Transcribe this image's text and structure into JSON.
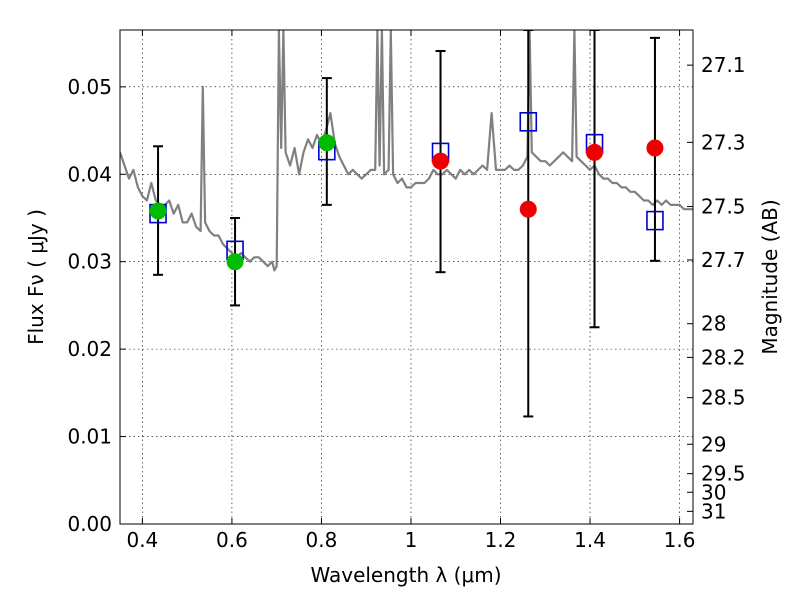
{
  "chart_data": {
    "type": "scatter",
    "title": "",
    "xlabel": "Wavelength  λ (μm)",
    "ylabel": "Flux  Fν  ( μJy )",
    "ylabel_right": "Magnitude (AB)",
    "xlim": [
      0.35,
      1.63
    ],
    "ylim": [
      0.0,
      0.0565
    ],
    "grid": true,
    "x_ticks": [
      0.4,
      0.6,
      0.8,
      1.0,
      1.2,
      1.4,
      1.6
    ],
    "x_tick_labels": [
      "0.4",
      "0.6",
      "0.8",
      "1",
      "1.2",
      "1.4",
      "1.6"
    ],
    "y_ticks": [
      0.0,
      0.01,
      0.02,
      0.03,
      0.04,
      0.05
    ],
    "y_tick_labels": [
      "0.00",
      "0.01",
      "0.02",
      "0.03",
      "0.04",
      "0.05"
    ],
    "right_axis": {
      "label": "Magnitude (AB)",
      "magnitudes": [
        27.1,
        27.3,
        27.5,
        27.7,
        28,
        28.2,
        28.5,
        29,
        29.5,
        30,
        31
      ],
      "tick_labels": [
        "27.1",
        "27.3",
        "27.5",
        "27.7",
        "28",
        "28.2",
        "28.5",
        "29",
        "29.5",
        "30",
        "31"
      ]
    },
    "series": [
      {
        "kind": "line",
        "color": "#808080",
        "x": [
          0.35,
          0.36,
          0.37,
          0.38,
          0.39,
          0.4,
          0.41,
          0.42,
          0.43,
          0.44,
          0.45,
          0.46,
          0.47,
          0.48,
          0.49,
          0.5,
          0.51,
          0.52,
          0.53,
          0.535,
          0.54,
          0.55,
          0.56,
          0.57,
          0.58,
          0.59,
          0.6,
          0.61,
          0.62,
          0.63,
          0.64,
          0.65,
          0.66,
          0.67,
          0.68,
          0.69,
          0.695,
          0.7,
          0.705,
          0.71,
          0.715,
          0.72,
          0.73,
          0.74,
          0.75,
          0.76,
          0.77,
          0.78,
          0.79,
          0.8,
          0.81,
          0.82,
          0.83,
          0.84,
          0.85,
          0.86,
          0.87,
          0.88,
          0.89,
          0.9,
          0.91,
          0.92,
          0.925,
          0.93,
          0.935,
          0.94,
          0.95,
          0.955,
          0.96,
          0.97,
          0.98,
          0.99,
          1.0,
          1.01,
          1.02,
          1.03,
          1.04,
          1.05,
          1.06,
          1.07,
          1.08,
          1.09,
          1.1,
          1.11,
          1.12,
          1.13,
          1.14,
          1.15,
          1.16,
          1.17,
          1.18,
          1.19,
          1.2,
          1.21,
          1.22,
          1.23,
          1.24,
          1.25,
          1.26,
          1.265,
          1.27,
          1.28,
          1.29,
          1.3,
          1.31,
          1.32,
          1.33,
          1.34,
          1.35,
          1.36,
          1.365,
          1.37,
          1.38,
          1.39,
          1.4,
          1.41,
          1.42,
          1.43,
          1.44,
          1.45,
          1.46,
          1.47,
          1.48,
          1.49,
          1.5,
          1.51,
          1.52,
          1.53,
          1.54,
          1.55,
          1.56,
          1.57,
          1.58,
          1.59,
          1.6,
          1.61,
          1.62,
          1.63
        ],
        "y": [
          0.0425,
          0.041,
          0.0395,
          0.0405,
          0.0385,
          0.0375,
          0.037,
          0.039,
          0.037,
          0.0365,
          0.0365,
          0.037,
          0.0355,
          0.0365,
          0.0345,
          0.0345,
          0.0355,
          0.034,
          0.0335,
          0.05,
          0.0345,
          0.0335,
          0.033,
          0.033,
          0.032,
          0.0315,
          0.031,
          0.0305,
          0.031,
          0.0305,
          0.03,
          0.0305,
          0.0305,
          0.03,
          0.0295,
          0.03,
          0.029,
          0.0295,
          0.0565,
          0.043,
          0.0565,
          0.0425,
          0.041,
          0.043,
          0.04,
          0.0425,
          0.044,
          0.043,
          0.0445,
          0.0435,
          0.045,
          0.047,
          0.0435,
          0.042,
          0.041,
          0.04,
          0.0405,
          0.04,
          0.0395,
          0.04,
          0.0405,
          0.0405,
          0.0565,
          0.041,
          0.0565,
          0.04,
          0.0405,
          0.0565,
          0.04,
          0.039,
          0.0395,
          0.0385,
          0.0385,
          0.039,
          0.039,
          0.039,
          0.0395,
          0.0405,
          0.04,
          0.04,
          0.0405,
          0.04,
          0.0395,
          0.0405,
          0.04,
          0.0405,
          0.04,
          0.0405,
          0.041,
          0.0405,
          0.047,
          0.0405,
          0.0405,
          0.0405,
          0.041,
          0.0405,
          0.0405,
          0.041,
          0.042,
          0.0565,
          0.0425,
          0.042,
          0.0415,
          0.0415,
          0.041,
          0.0415,
          0.042,
          0.0425,
          0.042,
          0.0415,
          0.0565,
          0.042,
          0.0415,
          0.041,
          0.0405,
          0.041,
          0.04,
          0.0395,
          0.0395,
          0.039,
          0.039,
          0.0385,
          0.0385,
          0.038,
          0.038,
          0.0375,
          0.037,
          0.037,
          0.0365,
          0.037,
          0.0365,
          0.037,
          0.0365,
          0.0365,
          0.0365,
          0.036,
          0.036,
          0.036
        ]
      },
      {
        "kind": "errorbar",
        "color": "#000000",
        "x": [
          0.435,
          0.607,
          0.812,
          1.066,
          1.262,
          1.41,
          1.545
        ],
        "y": [
          0.0358,
          0.03,
          0.0436,
          0.0415,
          0.036,
          0.0425,
          0.043
        ],
        "yerr_low": [
          0.0285,
          0.025,
          0.0365,
          0.0288,
          0.0123,
          0.0225,
          0.0301
        ],
        "yerr_high": [
          0.0432,
          0.035,
          0.051,
          0.0541,
          0.0565,
          0.0565,
          0.0556
        ]
      },
      {
        "kind": "squares",
        "color": "#0000cc",
        "x": [
          0.435,
          0.607,
          0.812,
          1.066,
          1.262,
          1.41,
          1.545
        ],
        "y": [
          0.0355,
          0.0313,
          0.0427,
          0.0425,
          0.046,
          0.0435,
          0.0347
        ]
      },
      {
        "kind": "circles",
        "color": "#00bb00",
        "x": [
          0.435,
          0.607,
          0.812
        ],
        "y": [
          0.0358,
          0.03,
          0.0436
        ]
      },
      {
        "kind": "circles",
        "color": "#ee0000",
        "x": [
          1.066,
          1.262,
          1.41,
          1.545
        ],
        "y": [
          0.0415,
          0.036,
          0.0425,
          0.043
        ]
      }
    ]
  }
}
